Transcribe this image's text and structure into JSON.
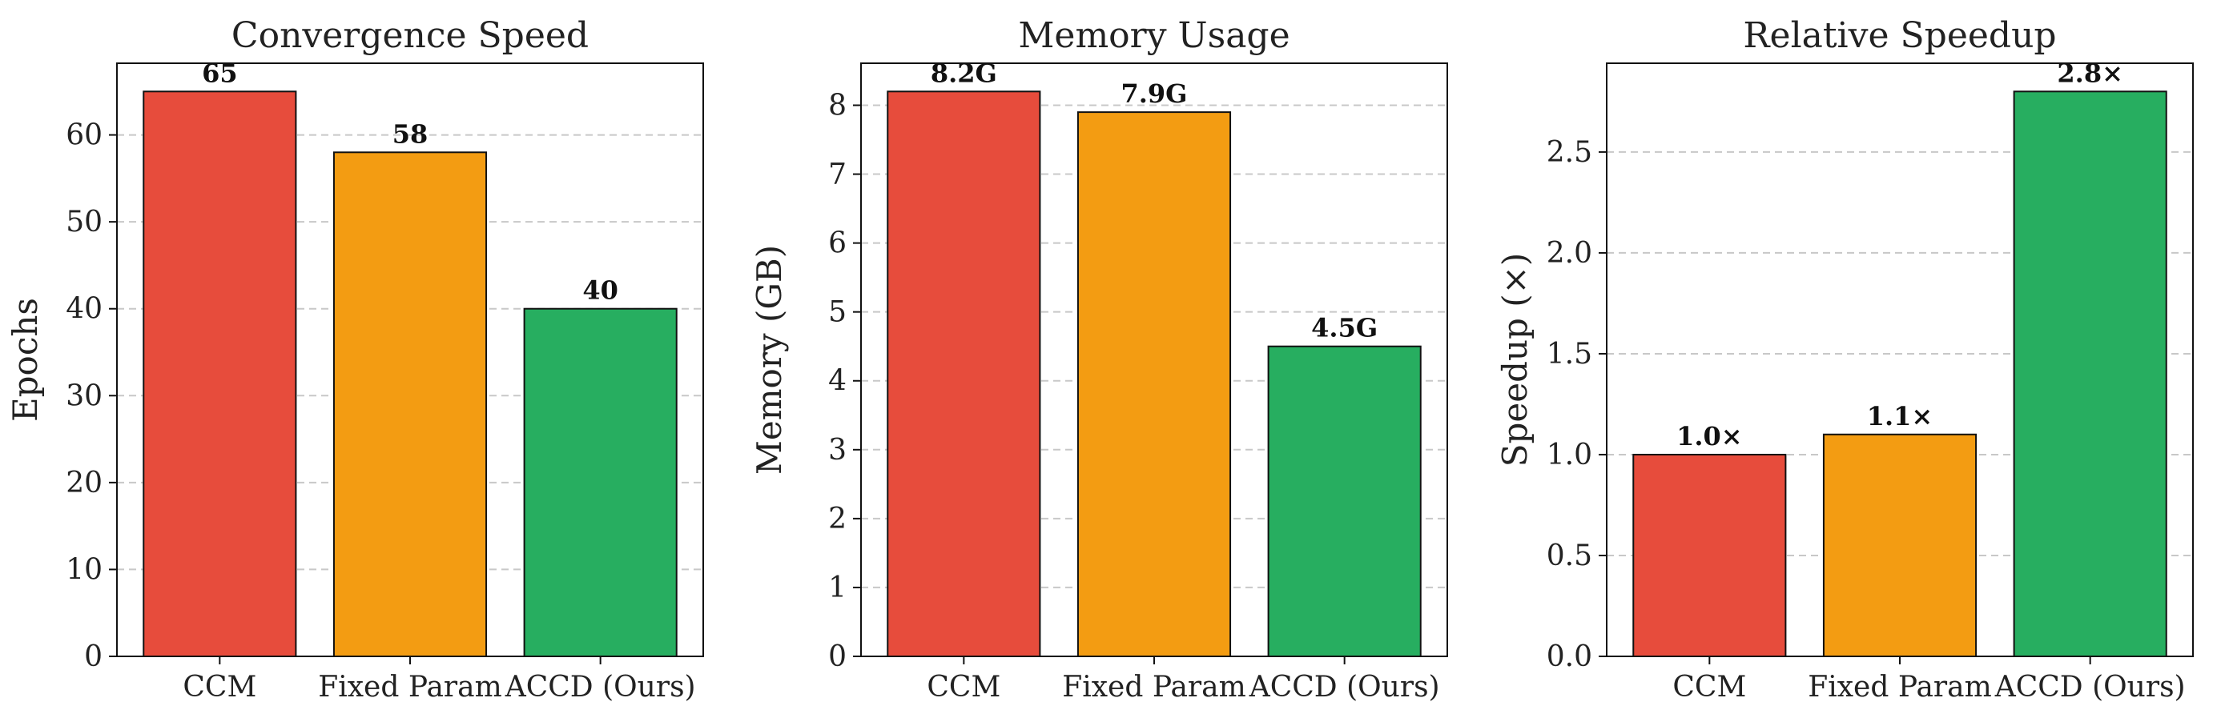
{
  "chart_data": [
    {
      "type": "bar",
      "title": "Convergence Speed",
      "xlabel": "",
      "ylabel": "Epochs",
      "categories": [
        "CCM",
        "Fixed Param",
        "ACCD (Ours)"
      ],
      "values": [
        65,
        58,
        40
      ],
      "value_labels": [
        "65",
        "58",
        "40"
      ],
      "colors": [
        "#e74c3c",
        "#f39c12",
        "#27ae60"
      ],
      "ylim": [
        0,
        68.25
      ],
      "yticks": [
        0,
        10,
        20,
        30,
        40,
        50,
        60
      ],
      "ytick_labels": [
        "0",
        "10",
        "20",
        "30",
        "40",
        "50",
        "60"
      ],
      "grid": true
    },
    {
      "type": "bar",
      "title": "Memory Usage",
      "xlabel": "",
      "ylabel": "Memory (GB)",
      "categories": [
        "CCM",
        "Fixed Param",
        "ACCD (Ours)"
      ],
      "values": [
        8.2,
        7.9,
        4.5
      ],
      "value_labels": [
        "8.2G",
        "7.9G",
        "4.5G"
      ],
      "colors": [
        "#e74c3c",
        "#f39c12",
        "#27ae60"
      ],
      "ylim": [
        0,
        8.61
      ],
      "yticks": [
        0,
        1,
        2,
        3,
        4,
        5,
        6,
        7,
        8
      ],
      "ytick_labels": [
        "0",
        "1",
        "2",
        "3",
        "4",
        "5",
        "6",
        "7",
        "8"
      ],
      "grid": true
    },
    {
      "type": "bar",
      "title": "Relative Speedup",
      "xlabel": "",
      "ylabel": "Speedup (×)",
      "categories": [
        "CCM",
        "Fixed Param",
        "ACCD (Ours)"
      ],
      "values": [
        1.0,
        1.1,
        2.8
      ],
      "value_labels": [
        "1.0×",
        "1.1×",
        "2.8×"
      ],
      "colors": [
        "#e74c3c",
        "#f39c12",
        "#27ae60"
      ],
      "ylim": [
        0,
        2.94
      ],
      "yticks": [
        0.0,
        0.5,
        1.0,
        1.5,
        2.0,
        2.5
      ],
      "ytick_labels": [
        "0.0",
        "0.5",
        "1.0",
        "1.5",
        "2.0",
        "2.5"
      ],
      "grid": true
    }
  ]
}
